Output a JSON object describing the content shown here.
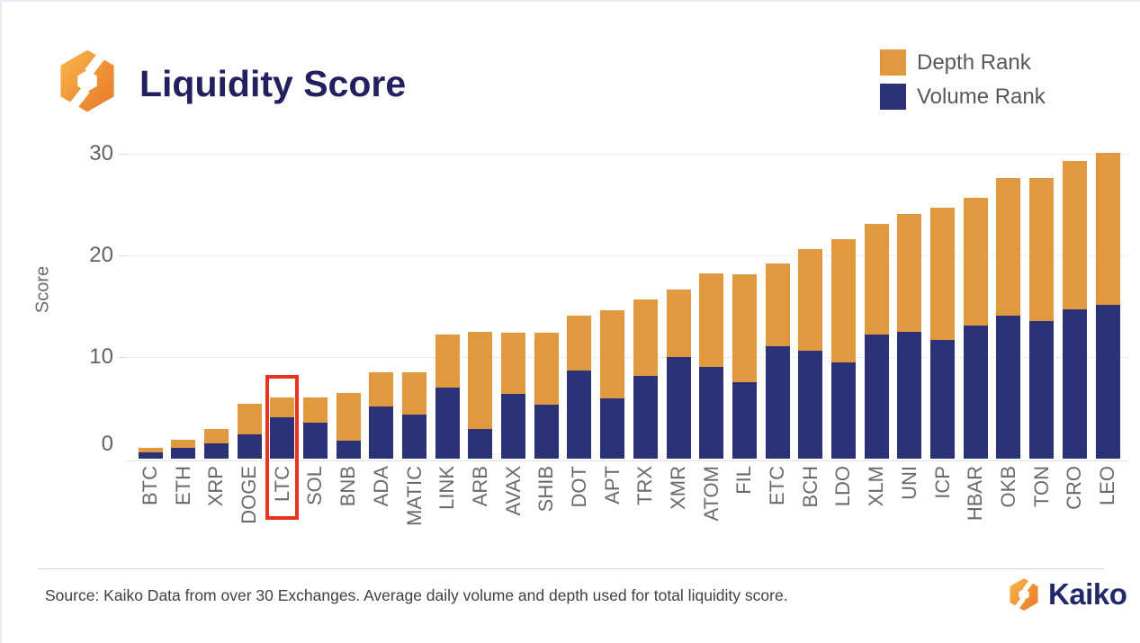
{
  "header": {
    "title": "Liquidity Score"
  },
  "legend": [
    {
      "label": "Depth Rank",
      "color": "#e2983f"
    },
    {
      "label": "Volume Rank",
      "color": "#2b3278"
    }
  ],
  "colors": {
    "depth_orange": "#e2983f",
    "volume_navy": "#2b3278",
    "title_navy": "#23205f",
    "highlight_red": "#e8331f",
    "axis_text_gray": "#6a6a6a"
  },
  "chart_data": {
    "type": "bar",
    "stacked": true,
    "title": "Liquidity Score",
    "xlabel": "",
    "ylabel": "Score",
    "yticks": [
      0,
      10,
      20,
      30
    ],
    "ylim": [
      0,
      31
    ],
    "grid": "horizontal",
    "legend_position": "top-right",
    "categories": [
      "BTC",
      "ETH",
      "XRP",
      "DOGE",
      "LTC",
      "SOL",
      "BNB",
      "ADA",
      "MATIC",
      "LINK",
      "ARB",
      "AVAX",
      "SHIB",
      "DOT",
      "APT",
      "TRX",
      "XMR",
      "ATOM",
      "FIL",
      "ETC",
      "BCH",
      "LDO",
      "XLM",
      "UNI",
      "ICP",
      "HBAR",
      "OKB",
      "TON",
      "CRO",
      "LEO"
    ],
    "series": [
      {
        "name": "Volume Rank",
        "color": "#2b3278",
        "values": [
          0.6,
          1.1,
          1.5,
          2.4,
          4.1,
          3.5,
          1.8,
          5.1,
          4.3,
          7.0,
          2.9,
          6.4,
          5.3,
          8.7,
          5.9,
          8.1,
          10.0,
          9.0,
          7.5,
          11.1,
          10.6,
          9.5,
          12.2,
          12.5,
          11.7,
          13.1,
          14.1,
          13.5,
          14.7,
          15.1
        ]
      },
      {
        "name": "Depth Rank",
        "color": "#e2983f",
        "values": [
          0.5,
          0.8,
          1.4,
          3.0,
          1.9,
          2.5,
          4.7,
          3.4,
          4.2,
          5.2,
          9.6,
          6.0,
          7.1,
          5.4,
          8.7,
          7.6,
          6.6,
          9.2,
          10.6,
          8.1,
          10.0,
          12.1,
          10.9,
          11.6,
          13.0,
          12.6,
          13.5,
          14.1,
          14.6,
          15.0
        ]
      }
    ],
    "totals": [
      1.1,
      1.9,
      2.9,
      5.4,
      6.0,
      6.0,
      6.5,
      8.5,
      8.5,
      12.2,
      12.5,
      12.4,
      12.4,
      14.1,
      14.6,
      15.7,
      16.6,
      18.2,
      18.1,
      19.2,
      20.6,
      21.6,
      23.1,
      24.1,
      24.7,
      25.7,
      27.6,
      27.6,
      29.3,
      30.1
    ],
    "highlight": {
      "category": "LTC",
      "style": "red-box"
    }
  },
  "footer": {
    "source": "Source: Kaiko Data from over 30 Exchanges. Average daily volume and depth used for total liquidity score.",
    "brand": "Kaiko"
  }
}
